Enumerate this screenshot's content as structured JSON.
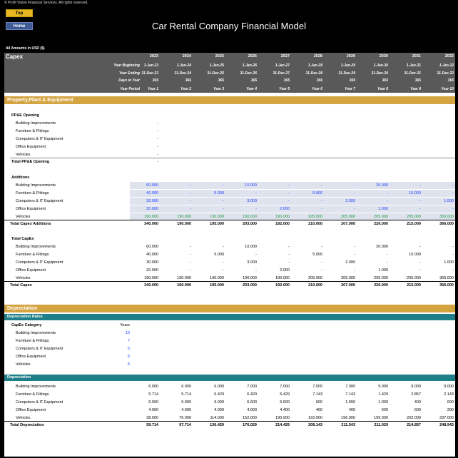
{
  "header": {
    "copyright": "© Profit Vision Financial Services. All rights reserved.",
    "top_button": "Top",
    "home_button": "Home",
    "title": "Car Rental Company Financial Model",
    "amounts_note": "All Amounts in  USD ($)"
  },
  "capex": {
    "title": "Capex",
    "years": [
      "2023",
      "2024",
      "2025",
      "2026",
      "2027",
      "2028",
      "2029",
      "2030",
      "2031",
      "2032"
    ],
    "year_beginning_label": "Year Beginning",
    "year_beginning": [
      "1-Jan-23",
      "1-Jan-24",
      "1-Jan-25",
      "1-Jan-26",
      "1-Jan-27",
      "1-Jan-28",
      "1-Jan-29",
      "1-Jan-30",
      "1-Jan-31",
      "1-Jan-32"
    ],
    "year_ending_label": "Year Ending",
    "year_ending": [
      "31-Dec-23",
      "31-Dec-24",
      "31-Dec-25",
      "31-Dec-26",
      "31-Dec-27",
      "31-Dec-28",
      "31-Dec-29",
      "31-Dec-30",
      "31-Dec-31",
      "31-Dec-32"
    ],
    "days_label": "Days in Year",
    "days": [
      "365",
      "366",
      "365",
      "365",
      "365",
      "366",
      "365",
      "365",
      "365",
      "366"
    ],
    "period_label": "Year Period",
    "period": [
      "Year 1",
      "Year 2",
      "Year 3",
      "Year 4",
      "Year 5",
      "Year 6",
      "Year 7",
      "Year 8",
      "Year 9",
      "Year 10"
    ]
  },
  "ppe": {
    "section_title": "Property,Plant & Equipment",
    "opening_title": "PP&E Opening",
    "opening_items": [
      {
        "label": "Building Improvements",
        "value": "-"
      },
      {
        "label": "Furniture & Fittings",
        "value": "-"
      },
      {
        "label": "Computers & IT Equipment",
        "value": "-"
      },
      {
        "label": "Office Equipment",
        "value": "-"
      },
      {
        "label": "Vehicles",
        "value": "-"
      }
    ],
    "opening_total_label": "Total PP&E Opening",
    "opening_total": "-",
    "additions_title": "Additions",
    "additions": [
      {
        "label": "Building Improvements",
        "values": [
          "60.000",
          "-",
          "-",
          "10.000",
          "-",
          "-",
          "-",
          "20.000",
          "-",
          "-"
        ]
      },
      {
        "label": "Furniture & Fittings",
        "values": [
          "40.000",
          "-",
          "5.000",
          "-",
          "-",
          "5.000",
          "-",
          "-",
          "10.000",
          "-"
        ]
      },
      {
        "label": "Computers & IT Equipment",
        "values": [
          "30.000",
          "-",
          "-",
          "3.000",
          "-",
          "-",
          "2.000",
          "-",
          "-",
          "1.000"
        ]
      },
      {
        "label": "Office Equipment",
        "values": [
          "20.000",
          "-",
          "-",
          "-",
          "2.000",
          "-",
          "-",
          "1.000",
          "-",
          "-"
        ]
      },
      {
        "label": "Vehicles",
        "values": [
          "190.000",
          "190.000",
          "190.000",
          "190.000",
          "190.000",
          "205.000",
          "205.000",
          "205.000",
          "205.000",
          "365.000"
        ]
      }
    ],
    "additions_total_label": "Total Capex Additions",
    "additions_total": [
      "340.000",
      "190.000",
      "195.000",
      "203.000",
      "192.000",
      "210.000",
      "207.000",
      "226.000",
      "215.000",
      "366.000"
    ],
    "capex_title": "Total CapEx",
    "capex": [
      {
        "label": "Building Improvements",
        "values": [
          "60.000",
          "-",
          "-",
          "10.000",
          "-",
          "-",
          "-",
          "20.000",
          "-",
          "-"
        ]
      },
      {
        "label": "Furniture & Fittings",
        "values": [
          "40.000",
          "-",
          "5.000",
          "-",
          "-",
          "5.000",
          "-",
          "-",
          "10.000",
          "-"
        ]
      },
      {
        "label": "Computers & IT Equipment",
        "values": [
          "30.000",
          "-",
          "-",
          "3.000",
          "-",
          "-",
          "2.000",
          "-",
          "-",
          "1.000"
        ]
      },
      {
        "label": "Office Equipment",
        "values": [
          "20.000",
          "-",
          "-",
          "-",
          "2.000",
          "-",
          "-",
          "1.000",
          "-",
          "-"
        ]
      },
      {
        "label": "Vehicles",
        "values": [
          "190.000",
          "190.000",
          "190.000",
          "190.000",
          "190.000",
          "205.000",
          "205.000",
          "205.000",
          "205.000",
          "365.000"
        ]
      }
    ],
    "capex_total_label": "Total Capex",
    "capex_total": [
      "340.000",
      "190.000",
      "195.000",
      "203.000",
      "192.000",
      "210.000",
      "207.000",
      "226.000",
      "215.000",
      "366.000"
    ]
  },
  "depreciation": {
    "section_title": "Depreciation",
    "rates_title": "Depreciation Rates",
    "rates_col1": "CapEx Category",
    "rates_col2": "Years",
    "rates": [
      {
        "label": "Building Improvements",
        "value": "10"
      },
      {
        "label": "Furniture & Fittings",
        "value": "7"
      },
      {
        "label": "Computers & IT Equipment",
        "value": "5"
      },
      {
        "label": "Office Equipment",
        "value": "5"
      },
      {
        "label": "Vehicles",
        "value": "5"
      }
    ],
    "table_title": "Depreciation",
    "items": [
      {
        "label": "Building Improvements",
        "values": [
          "6.000",
          "6.000",
          "6.000",
          "7.000",
          "7.000",
          "7.000",
          "7.000",
          "9.000",
          "9.000",
          "9.000"
        ]
      },
      {
        "label": "Furniture & Fittings",
        "values": [
          "5.714",
          "5.714",
          "6.429",
          "6.429",
          "6.429",
          "7.143",
          "7.143",
          "1.429",
          "2.857",
          "2.143"
        ]
      },
      {
        "label": "Computers & IT Equipment",
        "values": [
          "6.000",
          "6.000",
          "6.000",
          "6.600",
          "6.600",
          "600",
          "1.000",
          "1.000",
          "400",
          "600"
        ]
      },
      {
        "label": "Office Equipment",
        "values": [
          "4.000",
          "4.000",
          "4.000",
          "4.000",
          "4.400",
          "400",
          "400",
          "600",
          "600",
          "200"
        ]
      },
      {
        "label": "Vehicles",
        "values": [
          "38.000",
          "76.000",
          "114.000",
          "152.000",
          "190.000",
          "193.000",
          "196.000",
          "199.000",
          "202.000",
          "237.000"
        ]
      }
    ],
    "total_label": "Total Depreciation",
    "total": [
      "59.714",
      "97.714",
      "136.429",
      "176.029",
      "214.429",
      "208.143",
      "211.543",
      "211.029",
      "214.857",
      "248.943"
    ]
  },
  "colors": {
    "gold": "#d4a441",
    "teal": "#1f7f88",
    "gray": "#595959",
    "input_blue": "#1f3fff",
    "green": "#1a9a3a"
  }
}
